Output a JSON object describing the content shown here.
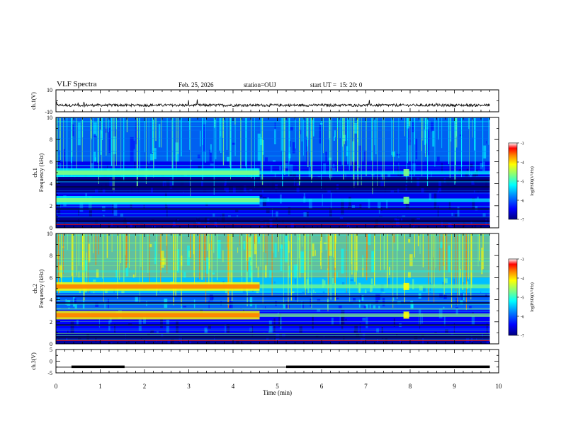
{
  "header": {
    "title": "VLF Spectra",
    "date": "Feb. 25, 2026",
    "station": "station=OUJ",
    "start": "start UT =  15: 20: 0"
  },
  "chart_data": [
    {
      "type": "line",
      "ylabel": "ch.1(V)",
      "ylim": [
        -10,
        10
      ],
      "yticks": [
        "10",
        "-10"
      ],
      "description_level": "noisy trace near -4 V",
      "xlim": [
        0,
        10
      ]
    },
    {
      "type": "heatmap",
      "ylabel_line1": "ch.1",
      "ylabel_line2": "Frequency (kHz)",
      "ylim": [
        0,
        10
      ],
      "yticks": [
        "0",
        "2",
        "4",
        "6",
        "8",
        "10"
      ],
      "xlim": [
        0,
        10
      ],
      "colorbar": {
        "label": "log(PSD)(V²/Hz)",
        "range": [
          -7,
          -3
        ],
        "ticks": [
          "-3",
          "-4",
          "-5",
          "-6",
          "-7"
        ]
      },
      "bands_khz": [
        5.0,
        2.5
      ],
      "band_end_min": 4.6
    },
    {
      "type": "heatmap",
      "ylabel_line1": "ch.2",
      "ylabel_line2": "Frequency (kHz)",
      "ylim": [
        0,
        10
      ],
      "yticks": [
        "0",
        "2",
        "4",
        "6",
        "8",
        "10"
      ],
      "xlim": [
        0,
        10
      ],
      "colorbar": {
        "label": "log(PSD)(V²/Hz)",
        "range": [
          -7,
          -3
        ],
        "ticks": [
          "-3",
          "-4",
          "-5",
          "-6",
          "-7"
        ]
      },
      "bands_khz": [
        5.2,
        2.6
      ],
      "band_end_min": 4.6
    },
    {
      "type": "line",
      "ylabel": "ch.3(V)",
      "ylim": [
        -5,
        5
      ],
      "yticks": [
        "5",
        "0",
        "-5"
      ],
      "xlim": [
        0,
        10
      ],
      "segments": [
        {
          "x": [
            0.35,
            1.55
          ],
          "y": -2.4
        },
        {
          "x": [
            5.2,
            9.8
          ],
          "y": -2.4
        }
      ]
    }
  ],
  "xaxis": {
    "label": "Time (min)",
    "ticks": [
      "0",
      "1",
      "2",
      "3",
      "4",
      "5",
      "6",
      "7",
      "8",
      "9",
      "10"
    ]
  },
  "colors": {
    "spectral": [
      "#00007f",
      "#0000ff",
      "#0080ff",
      "#00ffff",
      "#80ff80",
      "#ffff00",
      "#ff8000",
      "#ff0000",
      "#ffffff"
    ]
  }
}
